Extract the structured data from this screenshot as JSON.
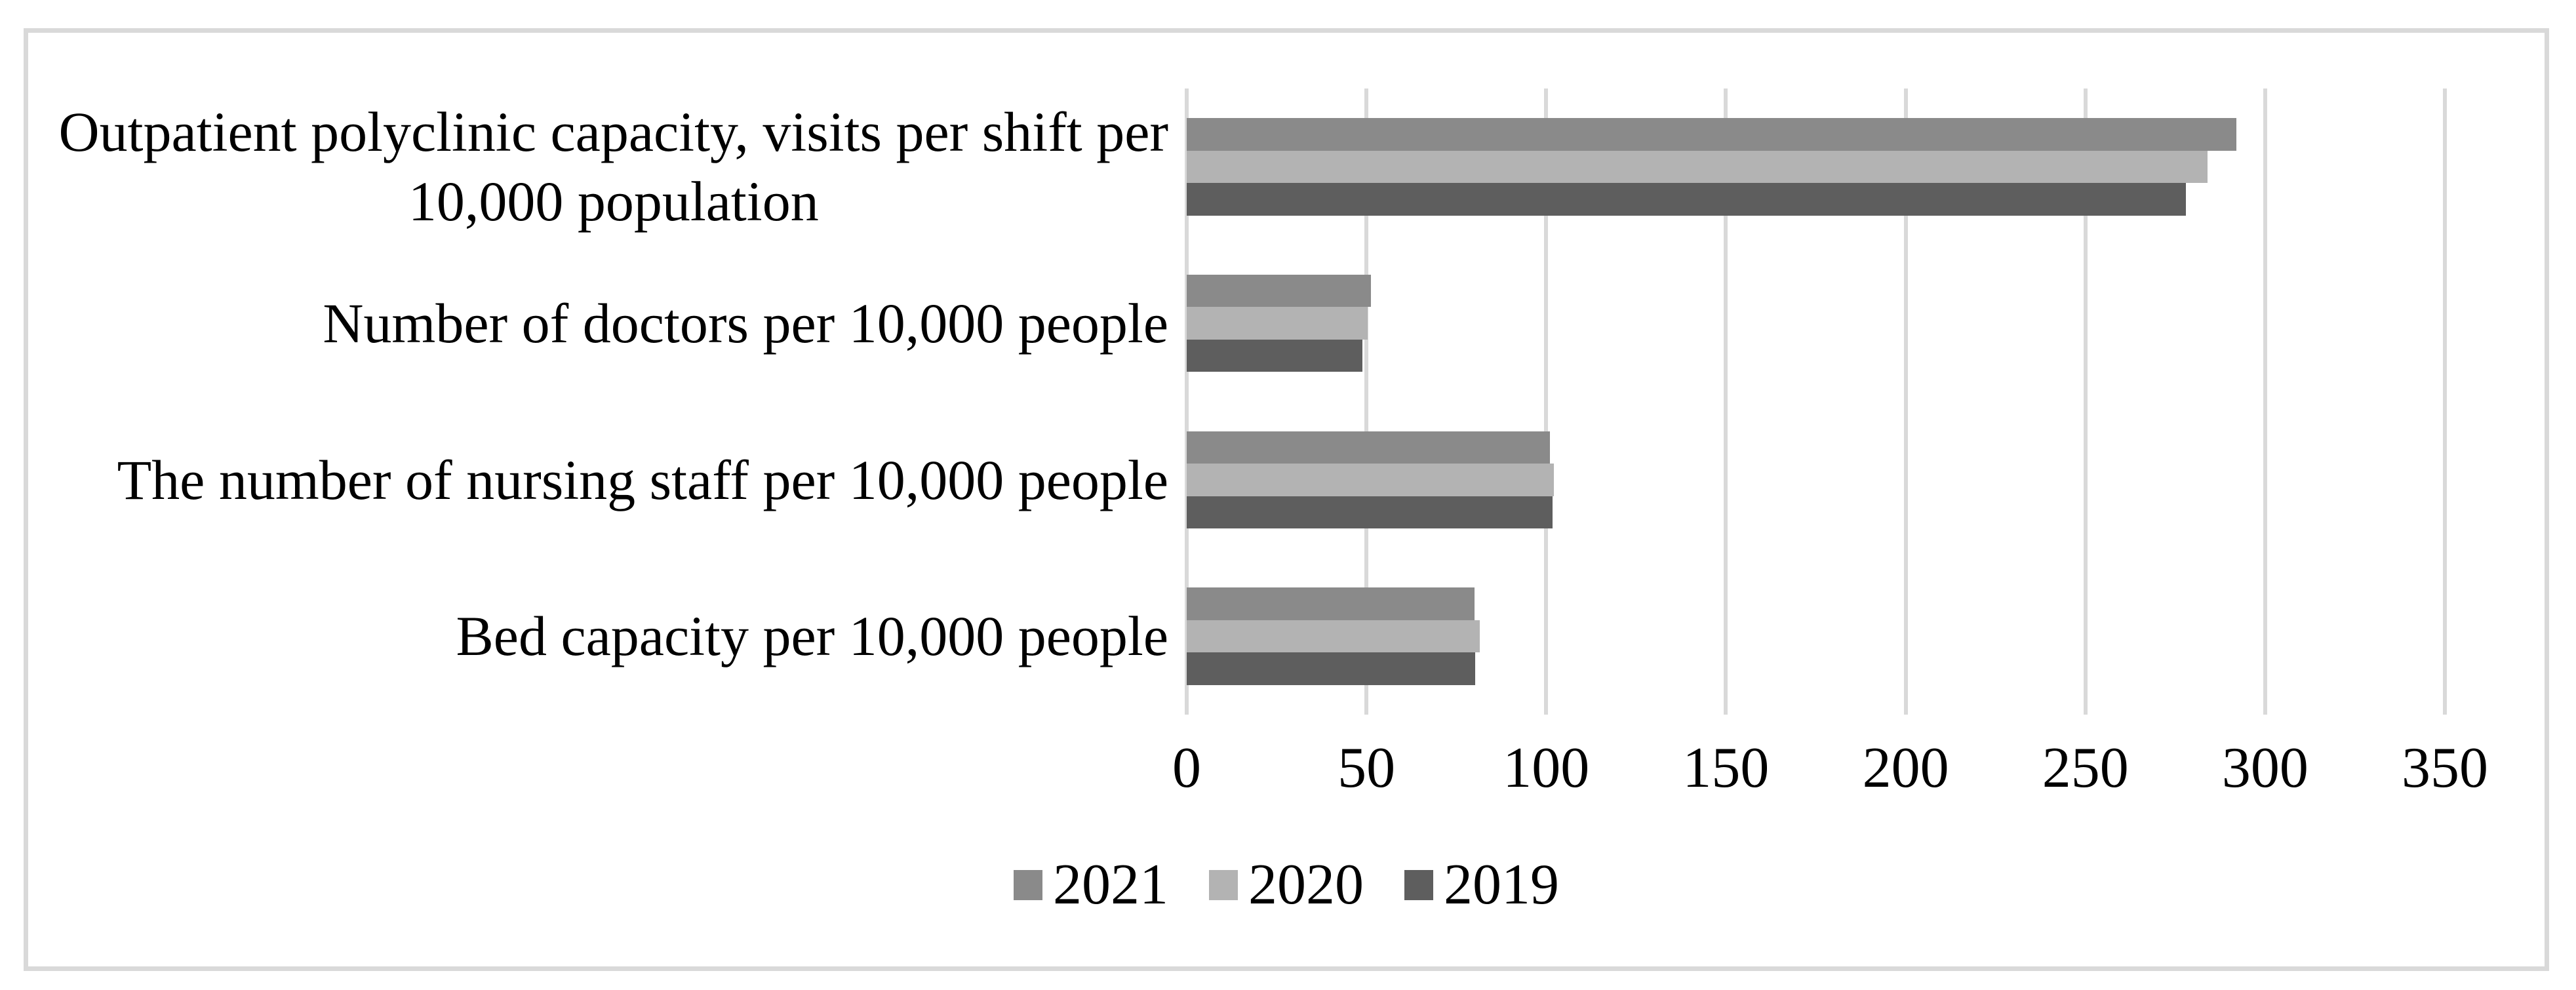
{
  "chart_data": {
    "type": "bar",
    "orientation": "horizontal",
    "title": "",
    "xlabel": "",
    "ylabel": "",
    "categories": [
      "Outpatient polyclinic capacity, visits per shift per\n10,000 population",
      "Number of doctors per 10,000 people",
      "The number of nursing staff per 10,000 people",
      "Bed capacity per 10,000 people"
    ],
    "series": [
      {
        "name": "2021",
        "color": "#8a8a8a",
        "values": [
          292,
          51.2,
          101.0,
          80.1
        ]
      },
      {
        "name": "2020",
        "color": "#b3b3b3",
        "values": [
          284,
          50.4,
          102.1,
          81.5
        ]
      },
      {
        "name": "2019",
        "color": "#5e5e5e",
        "values": [
          278,
          48.8,
          101.7,
          80.2
        ]
      }
    ],
    "xlim": [
      0,
      350
    ],
    "xticks": [
      0,
      50,
      100,
      150,
      200,
      250,
      300,
      350
    ],
    "grid": true,
    "gridline_color": "#d9d9d9",
    "frame_border_color": "#d9d9d9",
    "text_color": "#000000",
    "background": "#ffffff",
    "legend_position": "bottom",
    "legend": [
      "2021",
      "2020",
      "2019"
    ]
  }
}
